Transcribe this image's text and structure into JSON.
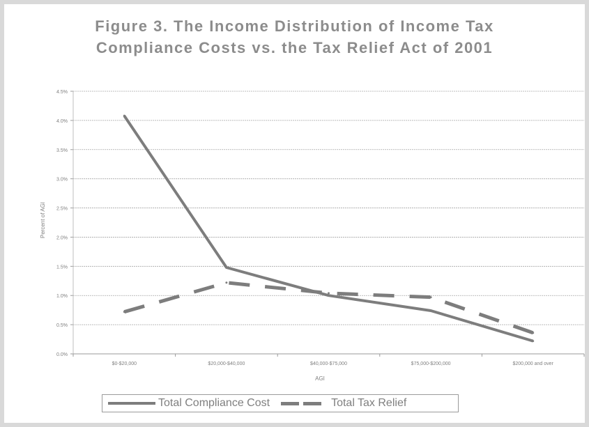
{
  "chart_data": {
    "type": "line",
    "title_line1": "Figure 3. The Income Distribution of Income Tax",
    "title_line2": "Compliance Costs vs. the Tax Relief Act of 2001",
    "xlabel": "AGI",
    "ylabel": "Percent of AGI",
    "categories": [
      "$0-$20,000",
      "$20,000-$40,000",
      "$40,000-$75,000",
      "$75,000-$200,000",
      "$200,000 and over"
    ],
    "y_ticks": [
      "0.0%",
      "0.5%",
      "1.0%",
      "1.5%",
      "2.0%",
      "2.5%",
      "3.0%",
      "3.5%",
      "4.0%",
      "4.5%"
    ],
    "ylim": [
      0,
      4.5
    ],
    "grid": true,
    "legend_position": "bottom",
    "series": [
      {
        "name": "Total Compliance Cost",
        "values": [
          4.08,
          1.48,
          1.0,
          0.74,
          0.22
        ],
        "style": "solid",
        "color": "#7d7d7d"
      },
      {
        "name": "Total Tax Relief",
        "values": [
          0.72,
          1.22,
          1.04,
          0.97,
          0.36
        ],
        "style": "dashed",
        "color": "#7d7d7d"
      }
    ]
  }
}
